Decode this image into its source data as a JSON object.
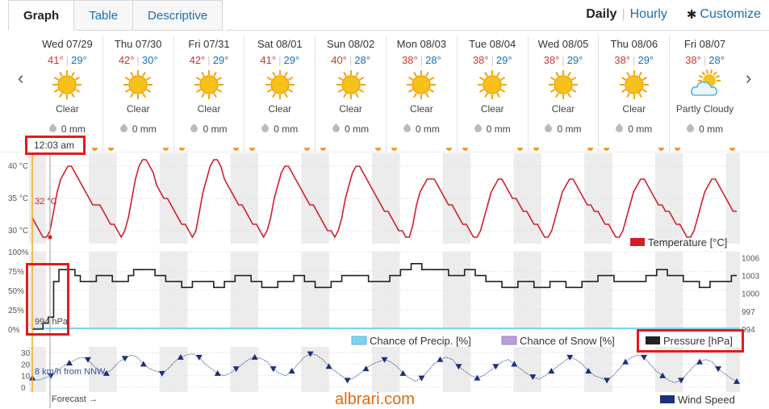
{
  "tabs": [
    {
      "label": "Graph",
      "active": true
    },
    {
      "label": "Table",
      "active": false
    },
    {
      "label": "Descriptive",
      "active": false
    }
  ],
  "view_toggle": {
    "daily": "Daily",
    "separator": "|",
    "hourly": "Hourly",
    "customize": "Customize"
  },
  "icons": {
    "prev": "chevron-left-icon",
    "next": "chevron-right-icon",
    "settings": "gear-icon"
  },
  "days": [
    {
      "date": "Wed 07/29",
      "hi": "41°",
      "lo": "29°",
      "cond": "Clear",
      "icon": "sun-icon",
      "precip": "0 mm"
    },
    {
      "date": "Thu 07/30",
      "hi": "42°",
      "lo": "30°",
      "cond": "Clear",
      "icon": "sun-icon",
      "precip": "0 mm"
    },
    {
      "date": "Fri 07/31",
      "hi": "42°",
      "lo": "29°",
      "cond": "Clear",
      "icon": "sun-icon",
      "precip": "0 mm"
    },
    {
      "date": "Sat 08/01",
      "hi": "41°",
      "lo": "29°",
      "cond": "Clear",
      "icon": "sun-icon",
      "precip": "0 mm"
    },
    {
      "date": "Sun 08/02",
      "hi": "40°",
      "lo": "28°",
      "cond": "Clear",
      "icon": "sun-icon",
      "precip": "0 mm"
    },
    {
      "date": "Mon 08/03",
      "hi": "38°",
      "lo": "28°",
      "cond": "Clear",
      "icon": "sun-icon",
      "precip": "0 mm"
    },
    {
      "date": "Tue 08/04",
      "hi": "38°",
      "lo": "29°",
      "cond": "Clear",
      "icon": "sun-icon",
      "precip": "0 mm"
    },
    {
      "date": "Wed 08/05",
      "hi": "38°",
      "lo": "29°",
      "cond": "Clear",
      "icon": "sun-icon",
      "precip": "0 mm"
    },
    {
      "date": "Thu 08/06",
      "hi": "38°",
      "lo": "29°",
      "cond": "Clear",
      "icon": "sun-icon",
      "precip": "0 mm"
    },
    {
      "date": "Fri 08/07",
      "hi": "38°",
      "lo": "28°",
      "cond": "Partly Cloudy",
      "icon": "partly-cloudy-icon",
      "precip": "0 mm"
    }
  ],
  "current": {
    "time": "12:03 am",
    "temp": "32 °C",
    "pressure": "994 hPa",
    "wind": "8 km/h from NNW"
  },
  "forecast_label": "Forecast →",
  "watermark": "albrari.com",
  "temp_axis": [
    "40 °C",
    "35 °C",
    "30 °C"
  ],
  "pct_axis": [
    "100%",
    "75%",
    "50%",
    "25%",
    "0%"
  ],
  "pressure_axis": [
    "1006",
    "1003",
    "1000",
    "997",
    "994"
  ],
  "wind_axis": [
    "30",
    "20",
    "10",
    "0"
  ],
  "legends": {
    "temperature": "Temperature [°C]",
    "precip": "Chance of Precip. [%]",
    "snow": "Chance of Snow [%]",
    "pressure": "Pressure [hPa]",
    "wind": "Wind Speed"
  },
  "colors": {
    "temperature": "#d21e2b",
    "pressure": "#222222",
    "wind": "#1b2f7d",
    "precip": "#7fd3ee",
    "snow": "#b9a0d9",
    "highlight": "#e31b1b"
  },
  "chart_data": [
    {
      "type": "line",
      "series": [
        {
          "name": "Temperature [°C]",
          "values": [
            32,
            31,
            30,
            29,
            29,
            30,
            33,
            36,
            38,
            39,
            40,
            40,
            39,
            38,
            37,
            36,
            35,
            34,
            34,
            34,
            33,
            32,
            31,
            31,
            30,
            29,
            30,
            32,
            35,
            38,
            40,
            41,
            41,
            40,
            39,
            37,
            36,
            35,
            35,
            34,
            33,
            32,
            31,
            31,
            30,
            29,
            30,
            33,
            36,
            38,
            40,
            41,
            41,
            40,
            38,
            37,
            36,
            35,
            34,
            34,
            33,
            32,
            31,
            31,
            30,
            29,
            30,
            32,
            35,
            37,
            39,
            40,
            40,
            39,
            38,
            37,
            36,
            35,
            34,
            34,
            33,
            32,
            31,
            30,
            30,
            29,
            30,
            32,
            35,
            37,
            39,
            40,
            40,
            39,
            38,
            37,
            36,
            35,
            34,
            33,
            33,
            32,
            31,
            30,
            30,
            29,
            29,
            31,
            34,
            36,
            37,
            38,
            38,
            38,
            37,
            36,
            35,
            34,
            34,
            33,
            32,
            31,
            31,
            30,
            29,
            29,
            30,
            32,
            34,
            36,
            37,
            38,
            38,
            37,
            36,
            35,
            35,
            34,
            33,
            33,
            32,
            31,
            31,
            30,
            29,
            29,
            30,
            32,
            34,
            36,
            37,
            38,
            38,
            37,
            36,
            35,
            34,
            34,
            33,
            33,
            32,
            31,
            31,
            30,
            29,
            29,
            30,
            32,
            34,
            36,
            37,
            38,
            38,
            37,
            36,
            35,
            34,
            34,
            33,
            33,
            32,
            31,
            31,
            30,
            29,
            29,
            30,
            32,
            34,
            36,
            37,
            38,
            38,
            37,
            36,
            35,
            34,
            33,
            33
          ]
        }
      ],
      "ylim": [
        28,
        42
      ],
      "ytick_labels": [
        "40 °C",
        "35 °C",
        "30 °C"
      ]
    },
    {
      "type": "line",
      "series": [
        {
          "name": "Pressure [hPa]",
          "values": [
            994,
            994,
            995,
            996,
            1002,
            1004,
            1004,
            1004,
            1003,
            1002,
            1002,
            1002,
            1003,
            1003,
            1003,
            1002,
            1002,
            1002,
            1003,
            1004,
            1004,
            1004,
            1004,
            1003,
            1003,
            1002,
            1002,
            1002,
            1001,
            1001,
            1002,
            1002,
            1002,
            1002,
            1001,
            1001,
            1002,
            1002,
            1003,
            1003,
            1003,
            1002,
            1002,
            1001,
            1001,
            1001,
            1002,
            1002,
            1002,
            1003,
            1003,
            1002,
            1002,
            1001,
            1001,
            1001,
            1002,
            1002,
            1003,
            1003,
            1003,
            1003,
            1003,
            1002,
            1002,
            1002,
            1002,
            1003,
            1003,
            1004,
            1004,
            1005,
            1005,
            1004,
            1004,
            1004,
            1004,
            1004,
            1003,
            1003,
            1003,
            1004,
            1004,
            1003,
            1003,
            1002,
            1002,
            1002,
            1001,
            1001,
            1001,
            1002,
            1002,
            1002,
            1001,
            1001,
            1001,
            1002,
            1002,
            1002,
            1001,
            1001,
            1001,
            1002,
            1002,
            1002,
            1003,
            1003,
            1003,
            1002,
            1002,
            1002,
            1002,
            1002,
            1002,
            1003,
            1003,
            1004,
            1004,
            1003,
            1003,
            1003,
            1002,
            1002,
            1002,
            1001,
            1001,
            1002,
            1002,
            1002,
            1002,
            1003,
            1003
          ]
        }
      ],
      "ylim": [
        994,
        1007
      ],
      "ytick_labels": [
        "1006",
        "1003",
        "1000",
        "997",
        "994"
      ]
    },
    {
      "type": "line",
      "series": [
        {
          "name": "Wind Speed",
          "values": [
            8,
            6,
            8,
            10,
            14,
            18,
            21,
            24,
            26,
            24,
            18,
            14,
            12,
            16,
            22,
            25,
            28,
            26,
            20,
            16,
            14,
            12,
            16,
            22,
            26,
            28,
            29,
            26,
            20,
            16,
            12,
            10,
            12,
            16,
            20,
            24,
            26,
            25,
            22,
            16,
            12,
            10,
            14,
            20,
            26,
            29,
            28,
            24,
            18,
            14,
            10,
            6,
            8,
            12,
            16,
            20,
            22,
            24,
            22,
            18,
            12,
            8,
            5,
            8,
            14,
            20,
            24,
            26,
            24,
            18,
            14,
            10,
            8,
            10,
            14,
            18,
            22,
            24,
            20,
            16,
            12,
            9,
            7,
            10,
            14,
            18,
            22,
            26,
            24,
            20,
            14,
            10,
            8,
            6,
            10,
            16,
            22,
            26,
            28,
            26,
            20,
            14,
            10,
            6,
            4,
            6,
            12,
            18,
            22,
            24,
            22,
            16,
            12,
            8,
            5
          ]
        }
      ],
      "ylim": [
        0,
        35
      ],
      "ytick_labels": [
        "30",
        "20",
        "10",
        "0"
      ]
    }
  ]
}
